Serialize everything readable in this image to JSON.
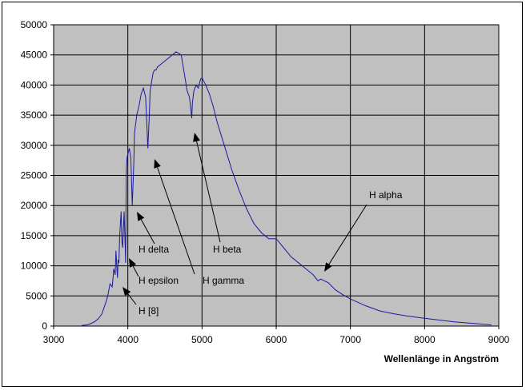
{
  "chart_data": {
    "type": "line",
    "title": "",
    "xlabel": "Wellenlänge in Angström",
    "ylabel": "",
    "xlim": [
      3000,
      9000
    ],
    "ylim": [
      0,
      50000
    ],
    "x_ticks": [
      "3000",
      "4000",
      "5000",
      "6000",
      "7000",
      "8000",
      "9000"
    ],
    "y_ticks": [
      "0",
      "5000",
      "10000",
      "15000",
      "20000",
      "25000",
      "30000",
      "35000",
      "40000",
      "45000",
      "50000"
    ],
    "grid": true,
    "legend": "none",
    "colors": {
      "plot_background": "#c0c0c0",
      "line": "#1a1aa0",
      "grid": "#000000"
    },
    "series": [
      {
        "x": [
          3380,
          3450,
          3500,
          3550,
          3600,
          3650,
          3700,
          3730,
          3760,
          3790,
          3810,
          3830,
          3840,
          3860,
          3870,
          3880,
          3890,
          3900,
          3910,
          3920,
          3930,
          3950,
          3960,
          3970,
          3980,
          3990,
          4000,
          4020,
          4040,
          4060,
          4080,
          4090,
          4100,
          4110,
          4120,
          4150,
          4180,
          4210,
          4240,
          4270,
          4290,
          4300,
          4320,
          4340,
          4360,
          4380,
          4400,
          4450,
          4500,
          4550,
          4600,
          4650,
          4680,
          4720,
          4760,
          4800,
          4830,
          4850,
          4861,
          4870,
          4890,
          4920,
          4950,
          4980,
          5000,
          5050,
          5100,
          5150,
          5200,
          5300,
          5400,
          5500,
          5600,
          5700,
          5800,
          5900,
          6000,
          6100,
          6200,
          6300,
          6400,
          6500,
          6563,
          6600,
          6700,
          6800,
          6900,
          7000,
          7200,
          7400,
          7600,
          7800,
          8000,
          8200,
          8400,
          8600,
          8800,
          8900
        ],
        "y": [
          100,
          200,
          400,
          700,
          1200,
          2000,
          3800,
          5000,
          7000,
          6500,
          9500,
          8500,
          12500,
          8000,
          11000,
          10500,
          15000,
          17000,
          19000,
          14000,
          13000,
          19000,
          15000,
          10500,
          26000,
          28000,
          28500,
          29500,
          28000,
          20000,
          27000,
          32000,
          33000,
          34000,
          35000,
          36500,
          38500,
          39500,
          38000,
          29500,
          35000,
          39000,
          40500,
          42000,
          42500,
          42500,
          43000,
          43500,
          44000,
          44500,
          45000,
          45500,
          45300,
          45000,
          42000,
          39000,
          38000,
          36000,
          34500,
          37000,
          39000,
          40000,
          39500,
          41000,
          41200,
          40000,
          38500,
          36500,
          34000,
          30000,
          26000,
          22500,
          19500,
          17000,
          15500,
          14500,
          14500,
          13000,
          11500,
          10500,
          9500,
          8500,
          7500,
          7800,
          7200,
          6000,
          5200,
          4500,
          3400,
          2500,
          2000,
          1600,
          1300,
          1000,
          700,
          500,
          300,
          200
        ]
      }
    ],
    "annotations": [
      {
        "text": "H alpha"
      },
      {
        "text": "H beta"
      },
      {
        "text": "H gamma"
      },
      {
        "text": "H delta"
      },
      {
        "text": "H epsilon"
      },
      {
        "text": "H [8]"
      }
    ]
  }
}
